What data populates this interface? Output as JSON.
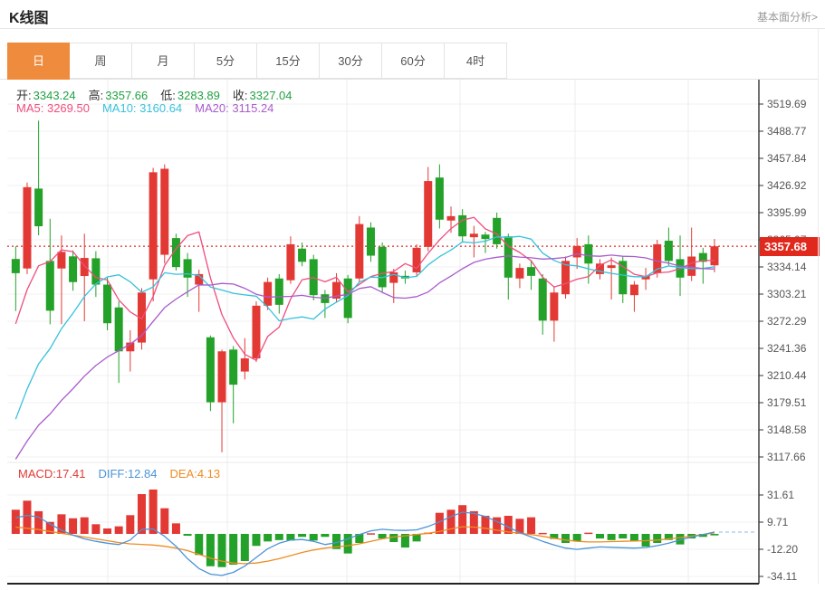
{
  "header": {
    "title": "K线图",
    "analysis_link": "基本面分析>"
  },
  "tabs": {
    "items": [
      {
        "label": "日",
        "active": true
      },
      {
        "label": "周",
        "active": false
      },
      {
        "label": "月",
        "active": false
      },
      {
        "label": "5分",
        "active": false
      },
      {
        "label": "15分",
        "active": false
      },
      {
        "label": "30分",
        "active": false
      },
      {
        "label": "60分",
        "active": false
      },
      {
        "label": "4时",
        "active": false
      }
    ]
  },
  "ohlc": {
    "open_label": "开:",
    "open": "3343.24",
    "high_label": "高:",
    "high": "3357.66",
    "low_label": "低:",
    "low": "3283.89",
    "close_label": "收:",
    "close": "3327.04"
  },
  "ma": {
    "ma5_label": "MA5:",
    "ma5": "3269.50",
    "ma10_label": "MA10:",
    "ma10": "3160.64",
    "ma20_label": "MA20:",
    "ma20": "3115.24"
  },
  "macd_info": {
    "macd_label": "MACD:",
    "macd": "17.41",
    "diff_label": "DIFF:",
    "diff": "12.84",
    "dea_label": "DEA:",
    "dea": "4.13"
  },
  "price_tag": "3357.68",
  "colors": {
    "up_red": "#e23935",
    "down_green": "#23a129",
    "ma5_pink": "#ef4d7d",
    "ma10_cyan": "#37c2db",
    "ma20_purple": "#a95ccc",
    "ohlc_value_green": "#21a243",
    "diff_blue": "#4a94d8",
    "dea_orange": "#ef8c20",
    "tag_red": "#e0281c",
    "active_tab_orange": "#ef8b3d",
    "axis_text": "#555",
    "grid": "#f0f0f0",
    "axis_line": "#333"
  },
  "chart_data": [
    {
      "type": "candlestick",
      "title": "K线图 日K",
      "current_price": 3357.68,
      "y_ticks": [
        "3519.69",
        "3488.77",
        "3457.84",
        "3426.92",
        "3395.99",
        "3365.07",
        "3334.14",
        "3303.21",
        "3272.29",
        "3241.36",
        "3210.44",
        "3179.51",
        "3148.58",
        "3117.66"
      ],
      "ylim": [
        3102.2,
        3535.15
      ],
      "grid": true,
      "overlays": [
        {
          "name": "MA5",
          "color": "#ef4d7d"
        },
        {
          "name": "MA10",
          "color": "#37c2db"
        },
        {
          "name": "MA20",
          "color": "#a95ccc"
        }
      ],
      "candles_ohlc": [
        [
          3343.24,
          3357.66,
          3283.89,
          3327.04
        ],
        [
          3332.4,
          3430.3,
          3326.0,
          3425.0
        ],
        [
          3423.4,
          3500.8,
          3370.2,
          3380.5
        ],
        [
          3341.0,
          3389.0,
          3268.8,
          3284.3
        ],
        [
          3332.4,
          3370.0,
          3269.0,
          3351.3
        ],
        [
          3346.2,
          3353.0,
          3307.0,
          3316.9
        ],
        [
          3323.8,
          3372.0,
          3272.3,
          3344.4
        ],
        [
          3344.0,
          3352.0,
          3300.0,
          3314.0
        ],
        [
          3314.0,
          3322.0,
          3262.0,
          3270.0
        ],
        [
          3288.0,
          3295.0,
          3202.0,
          3238.0
        ],
        [
          3238.0,
          3262.0,
          3215.0,
          3248.0
        ],
        [
          3248.0,
          3310.0,
          3240.0,
          3305.0
        ],
        [
          3320.0,
          3447.0,
          3295.0,
          3442.0
        ],
        [
          3348.0,
          3451.0,
          3338.0,
          3446.0
        ],
        [
          3367.0,
          3372.0,
          3330.0,
          3334.0
        ],
        [
          3343.0,
          3350.0,
          3300.0,
          3322.0
        ],
        [
          3314.0,
          3331.0,
          3283.0,
          3326.0
        ],
        [
          3254.0,
          3256.0,
          3170.0,
          3180.0
        ],
        [
          3180.0,
          3240.0,
          3123.0,
          3238.0
        ],
        [
          3240.0,
          3244.0,
          3156.0,
          3200.0
        ],
        [
          3215.0,
          3253.0,
          3206.0,
          3230.0
        ],
        [
          3230.0,
          3295.0,
          3226.0,
          3290.0
        ],
        [
          3290.0,
          3322.0,
          3285.0,
          3317.0
        ],
        [
          3321.0,
          3326.0,
          3281.0,
          3291.0
        ],
        [
          3319.0,
          3369.0,
          3315.0,
          3360.0
        ],
        [
          3355.0,
          3362.0,
          3335.0,
          3340.0
        ],
        [
          3343.0,
          3348.0,
          3296.0,
          3302.0
        ],
        [
          3303.0,
          3308.0,
          3276.0,
          3293.0
        ],
        [
          3298.0,
          3327.0,
          3294.0,
          3317.0
        ],
        [
          3321.0,
          3325.0,
          3270.0,
          3276.0
        ],
        [
          3321.0,
          3392.0,
          3316.0,
          3383.0
        ],
        [
          3379.0,
          3385.0,
          3340.0,
          3347.0
        ],
        [
          3357.0,
          3362.0,
          3305.0,
          3311.0
        ],
        [
          3316.0,
          3332.0,
          3293.0,
          3328.0
        ],
        [
          3324.0,
          3330.0,
          3315.0,
          3321.0
        ],
        [
          3328.0,
          3360.0,
          3324.0,
          3356.0
        ],
        [
          3357.0,
          3448.0,
          3352.0,
          3432.0
        ],
        [
          3436.0,
          3451.0,
          3378.0,
          3388.0
        ],
        [
          3387.0,
          3403.0,
          3373.0,
          3392.0
        ],
        [
          3393.0,
          3400.0,
          3362.0,
          3369.0
        ],
        [
          3368.0,
          3381.0,
          3345.0,
          3372.0
        ],
        [
          3371.0,
          3374.0,
          3350.0,
          3366.0
        ],
        [
          3390.0,
          3396.0,
          3355.0,
          3360.0
        ],
        [
          3369.0,
          3372.0,
          3297.0,
          3322.0
        ],
        [
          3321.0,
          3338.0,
          3310.0,
          3333.0
        ],
        [
          3334.0,
          3342.0,
          3308.0,
          3324.0
        ],
        [
          3321.0,
          3326.0,
          3257.0,
          3273.0
        ],
        [
          3273.0,
          3312.0,
          3249.0,
          3305.0
        ],
        [
          3303.0,
          3346.0,
          3298.0,
          3341.0
        ],
        [
          3345.0,
          3367.0,
          3332.0,
          3358.0
        ],
        [
          3360.0,
          3370.0,
          3315.0,
          3338.0
        ],
        [
          3326.0,
          3343.0,
          3320.0,
          3338.0
        ],
        [
          3333.0,
          3345.0,
          3297.0,
          3336.0
        ],
        [
          3341.0,
          3346.0,
          3293.0,
          3303.0
        ],
        [
          3302.0,
          3318.0,
          3283.0,
          3314.0
        ],
        [
          3320.0,
          3333.0,
          3308.0,
          3324.0
        ],
        [
          3327.0,
          3365.0,
          3322.0,
          3360.0
        ],
        [
          3364.0,
          3379.0,
          3336.0,
          3341.0
        ],
        [
          3343.0,
          3370.0,
          3301.0,
          3322.0
        ],
        [
          3324.0,
          3379.0,
          3318.0,
          3346.0
        ],
        [
          3350.0,
          3356.0,
          3315.0,
          3340.0
        ],
        [
          3336.0,
          3366.0,
          3328.0,
          3357.68
        ]
      ]
    },
    {
      "type": "bar",
      "title": "MACD",
      "y_ticks": [
        "31.61",
        "9.71",
        "-12.20",
        "-34.11"
      ],
      "ylim": [
        -41.6,
        42.8
      ],
      "values": [
        19.5,
        26.8,
        18.3,
        9.7,
        15.8,
        12.6,
        13.4,
        7.8,
        4.4,
        6.1,
        15.1,
        32.1,
        35.8,
        20.7,
        8.5,
        -1.5,
        -17,
        -26.1,
        -26.8,
        -24.8,
        -21.9,
        -9.7,
        -6.1,
        -5,
        -5.4,
        -2.4,
        -5.4,
        -2.4,
        -12.2,
        -15.8,
        -7.3,
        0.5,
        -3.7,
        -6.6,
        -11,
        -6.1,
        1,
        17,
        19.5,
        23.2,
        18.3,
        14.6,
        13.4,
        14.6,
        12.2,
        13.4,
        0.8,
        -4.1,
        -7.3,
        -6,
        1,
        -3.7,
        -5,
        -3.7,
        -6,
        -10.2,
        -7.3,
        -4.9,
        -8.5,
        -3.7,
        -2.4,
        -1.2
      ],
      "diff_line": [
        13,
        15,
        13.5,
        8,
        3,
        -1,
        -4,
        -6,
        -7.5,
        -8.6,
        -5,
        3.5,
        4,
        -2,
        -10,
        -20,
        -28,
        -32.5,
        -33.5,
        -31,
        -26,
        -19,
        -12,
        -7.5,
        -5,
        -4.5,
        -6,
        -8.6,
        -7,
        -4,
        -0.5,
        2.5,
        3.7,
        3,
        2.8,
        3.3,
        6,
        9.7,
        14,
        17.5,
        16.5,
        14,
        10,
        5.5,
        1,
        -2.5,
        -6,
        -9,
        -11.5,
        -12.5,
        -11.5,
        -10.5,
        -10.8,
        -11.2,
        -11.5,
        -11,
        -9.5,
        -7.5,
        -5,
        -2.5,
        -0.5,
        1.5
      ],
      "dea_line": [
        5.5,
        4.5,
        3.5,
        2,
        0.5,
        -1,
        -2.5,
        -4,
        -5.5,
        -7,
        -8,
        -8.5,
        -9,
        -10,
        -11.5,
        -13.5,
        -16.5,
        -19.5,
        -22,
        -23.5,
        -24,
        -23.5,
        -22,
        -20,
        -17.5,
        -15,
        -13,
        -11.5,
        -10.5,
        -9.5,
        -8,
        -6,
        -4,
        -2.5,
        -1.5,
        -0.5,
        0.5,
        2,
        4,
        5.8,
        5.5,
        4.5,
        3,
        1.5,
        0.5,
        -0.5,
        -2,
        -3.5,
        -5,
        -6,
        -6.5,
        -6.5,
        -6.2,
        -6,
        -5.8,
        -5.5,
        -5,
        -4,
        -3,
        -1.8,
        -0.5,
        0.9
      ]
    }
  ]
}
